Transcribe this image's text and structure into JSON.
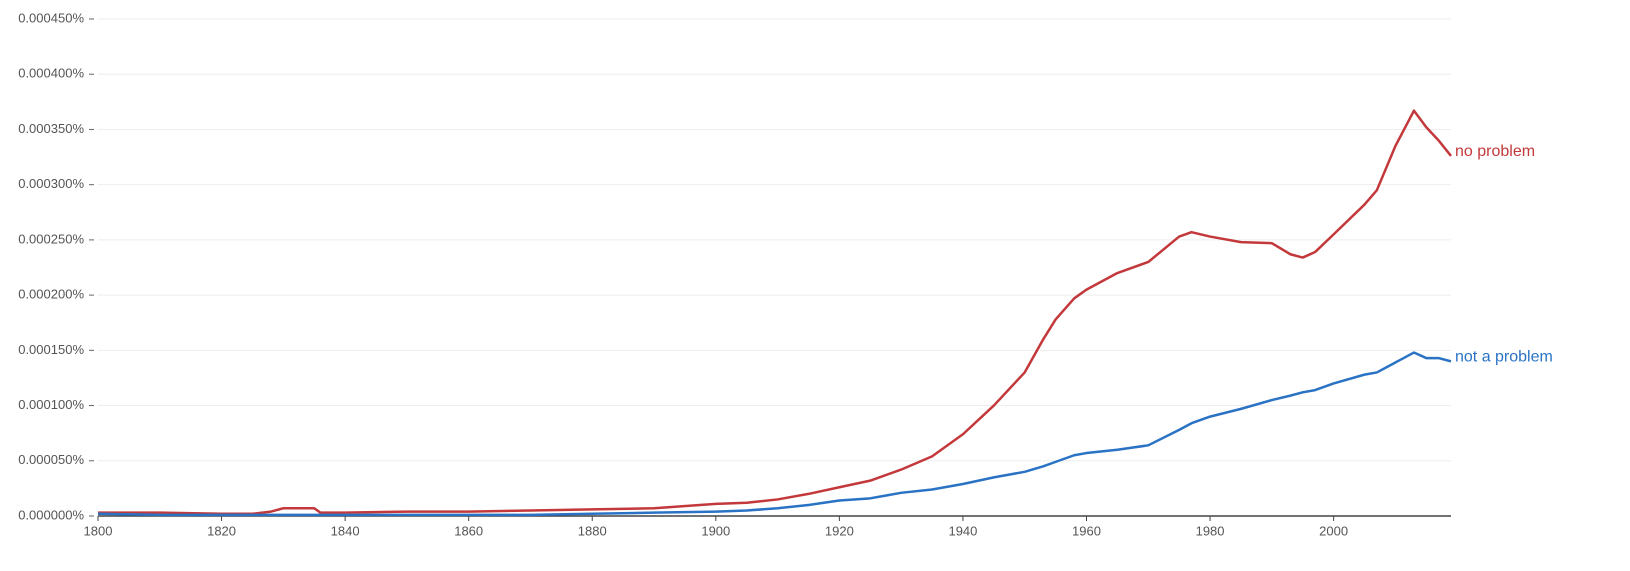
{
  "chart_data": {
    "type": "line",
    "x": [
      1800,
      1810,
      1820,
      1825,
      1828,
      1830,
      1835,
      1836,
      1840,
      1850,
      1860,
      1870,
      1880,
      1890,
      1900,
      1905,
      1910,
      1915,
      1920,
      1925,
      1930,
      1935,
      1940,
      1945,
      1950,
      1953,
      1955,
      1958,
      1960,
      1965,
      1970,
      1975,
      1977,
      1980,
      1985,
      1990,
      1993,
      1995,
      1997,
      2000,
      2005,
      2007,
      2010,
      2013,
      2015,
      2017,
      2019
    ],
    "series": [
      {
        "name": "no problem",
        "color": "#c3393b",
        "values": [
          3e-06,
          3e-06,
          2e-06,
          2e-06,
          4e-06,
          7e-06,
          7e-06,
          3e-06,
          3e-06,
          4e-06,
          4e-06,
          5e-06,
          6e-06,
          7e-06,
          1.1e-05,
          1.2e-05,
          1.5e-05,
          2e-05,
          2.6e-05,
          3.2e-05,
          4.2e-05,
          5.4e-05,
          7.4e-05,
          0.0001,
          0.00013,
          0.00016,
          0.000178,
          0.000197,
          0.000205,
          0.00022,
          0.00023,
          0.000253,
          0.000257,
          0.000253,
          0.000248,
          0.000247,
          0.000237,
          0.000234,
          0.000239,
          0.000255,
          0.000282,
          0.000295,
          0.000335,
          0.000367,
          0.000352,
          0.00034,
          0.000326
        ]
      },
      {
        "name": "not a problem",
        "color": "#2a73c4",
        "values": [
          2e-06,
          1e-06,
          1e-06,
          1e-06,
          1e-06,
          1e-06,
          1e-06,
          1e-06,
          1e-06,
          1e-06,
          1e-06,
          1e-06,
          2e-06,
          3e-06,
          4e-06,
          5e-06,
          7e-06,
          1e-05,
          1.4e-05,
          1.6e-05,
          2.1e-05,
          2.4e-05,
          2.9e-05,
          3.5e-05,
          4e-05,
          4.5e-05,
          4.9e-05,
          5.5e-05,
          5.7e-05,
          6e-05,
          6.4e-05,
          7.8e-05,
          8.4e-05,
          9e-05,
          9.7e-05,
          0.000105,
          0.000109,
          0.000112,
          0.000114,
          0.00012,
          0.000128,
          0.00013,
          0.000139,
          0.000148,
          0.000143,
          0.000143,
          0.00014
        ]
      }
    ],
    "xlim": [
      1800,
      2019
    ],
    "xticks": [
      1800,
      1820,
      1840,
      1860,
      1880,
      1900,
      1920,
      1940,
      1960,
      1980,
      2000
    ],
    "ylim": [
      0,
      0.00045
    ],
    "yticks": [
      {
        "value": 0,
        "label": "0.000000%"
      },
      {
        "value": 5e-05,
        "label": "0.000050%"
      },
      {
        "value": 0.0001,
        "label": "0.000100%"
      },
      {
        "value": 0.00015,
        "label": "0.000150%"
      },
      {
        "value": 0.0002,
        "label": "0.000200%"
      },
      {
        "value": 0.00025,
        "label": "0.000250%"
      },
      {
        "value": 0.0003,
        "label": "0.000300%"
      },
      {
        "value": 0.00035,
        "label": "0.000350%"
      },
      {
        "value": 0.0004,
        "label": "0.000400%"
      },
      {
        "value": 0.00045,
        "label": "0.000450%"
      }
    ],
    "grid": true
  }
}
